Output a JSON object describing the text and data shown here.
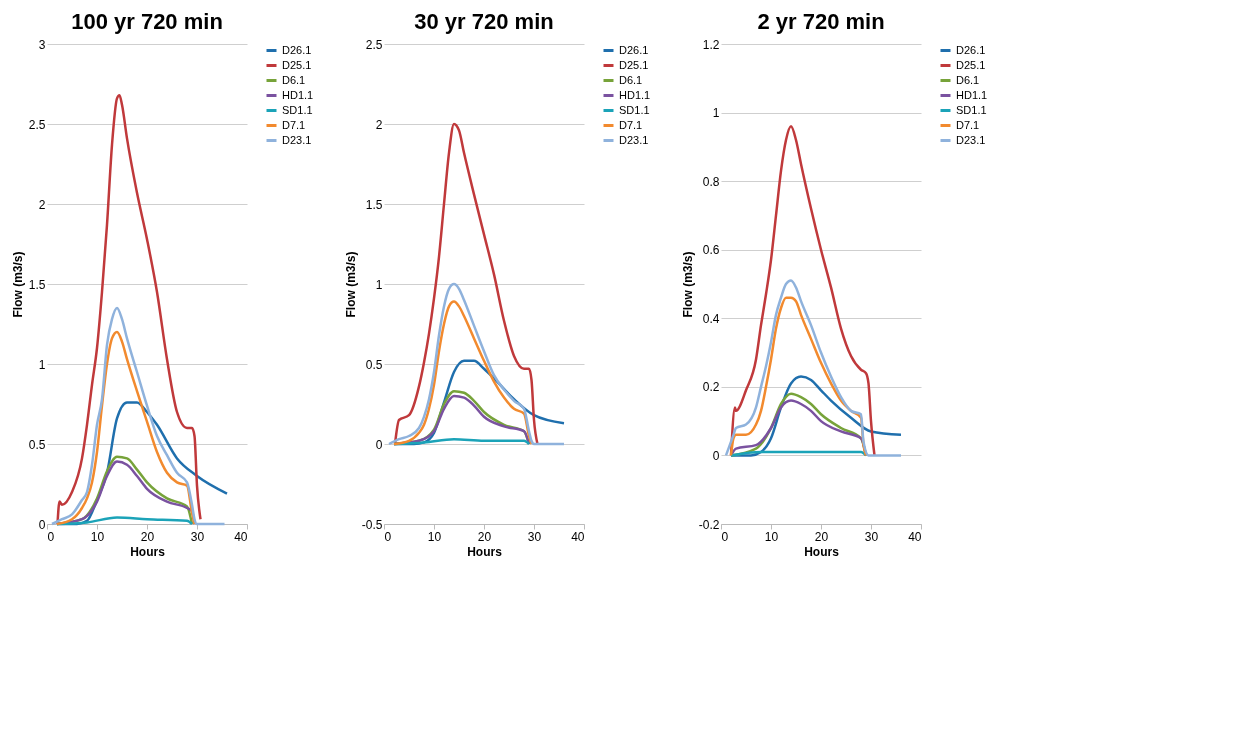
{
  "chart_data": [
    {
      "type": "line",
      "title": "100 yr 720 min",
      "xlabel": "Hours",
      "ylabel": "Flow (m3/s)",
      "xlim": [
        0,
        40
      ],
      "xticks": [
        0,
        10,
        20,
        30,
        40
      ],
      "ylim": [
        0,
        3
      ],
      "yticks": [
        0,
        0.5,
        1,
        1.5,
        2,
        2.5,
        3
      ],
      "grid": "y",
      "legend": "right",
      "series": [
        {
          "name": "D26.1",
          "color": "#1f6fad",
          "x": [
            2,
            6,
            8,
            10,
            12,
            14,
            16,
            18,
            20,
            22,
            26,
            30,
            36
          ],
          "values": [
            0,
            0,
            0.02,
            0.15,
            0.32,
            0.66,
            0.76,
            0.76,
            0.7,
            0.62,
            0.41,
            0.3,
            0.19
          ]
        },
        {
          "name": "D25.1",
          "color": "#c0393b",
          "x": [
            2.1,
            2.5,
            3,
            5,
            7,
            8,
            9,
            10,
            11,
            12,
            13,
            14,
            14.5,
            15,
            16,
            18,
            20,
            22,
            24,
            26,
            28,
            29,
            29.5,
            30,
            30.7
          ],
          "values": [
            0,
            0.14,
            0.12,
            0.2,
            0.41,
            0.62,
            0.87,
            1.1,
            1.45,
            1.87,
            2.37,
            2.66,
            2.68,
            2.62,
            2.41,
            2.07,
            1.78,
            1.45,
            1.03,
            0.7,
            0.6,
            0.6,
            0.55,
            0.24,
            0.03
          ]
        },
        {
          "name": "D6.1",
          "color": "#77a33a",
          "x": [
            2,
            7,
            10,
            12,
            14,
            16,
            18,
            20,
            24,
            28,
            29
          ],
          "values": [
            0,
            0.03,
            0.16,
            0.33,
            0.42,
            0.41,
            0.34,
            0.26,
            0.16,
            0.11,
            0
          ]
        },
        {
          "name": "HD1.1",
          "color": "#7a52a0",
          "x": [
            2,
            7,
            10,
            12,
            14,
            16,
            18,
            20,
            24,
            28,
            29,
            29.5
          ],
          "values": [
            0,
            0.03,
            0.14,
            0.3,
            0.39,
            0.37,
            0.3,
            0.22,
            0.14,
            0.1,
            0.08,
            0
          ]
        },
        {
          "name": "SD1.1",
          "color": "#1ba3b8",
          "x": [
            2,
            8,
            14,
            20,
            28,
            29
          ],
          "values": [
            0,
            0.01,
            0.04,
            0.03,
            0.02,
            0
          ]
        },
        {
          "name": "D7.1",
          "color": "#f28a2e",
          "x": [
            2,
            5,
            7,
            8,
            9,
            10,
            11,
            12,
            13,
            14,
            15,
            16,
            18,
            20,
            22,
            24,
            26,
            28,
            29,
            29.5
          ],
          "values": [
            0,
            0.03,
            0.1,
            0.16,
            0.26,
            0.45,
            0.74,
            1.0,
            1.16,
            1.2,
            1.14,
            1.03,
            0.83,
            0.64,
            0.45,
            0.32,
            0.26,
            0.24,
            0.07,
            0
          ]
        },
        {
          "name": "D23.1",
          "color": "#8fb2dc",
          "x": [
            1,
            3,
            5,
            7,
            8,
            9,
            10,
            11,
            12,
            13,
            14,
            15,
            16,
            18,
            20,
            22,
            24,
            26,
            28,
            29,
            29.5,
            30,
            35.5
          ],
          "values": [
            0,
            0.03,
            0.06,
            0.15,
            0.2,
            0.37,
            0.62,
            0.78,
            1.12,
            1.28,
            1.35,
            1.28,
            1.16,
            0.95,
            0.74,
            0.55,
            0.43,
            0.32,
            0.26,
            0.12,
            0.03,
            0,
            0
          ]
        }
      ]
    },
    {
      "type": "line",
      "title": "30 yr 720 min",
      "xlabel": "Hours",
      "ylabel": "Flow (m3/s)",
      "xlim": [
        0,
        40
      ],
      "xticks": [
        0,
        10,
        20,
        30,
        40
      ],
      "ylim": [
        -0.5,
        2.5
      ],
      "yticks": [
        -0.5,
        0,
        0.5,
        1,
        1.5,
        2,
        2.5
      ],
      "grid": "y",
      "legend": "right",
      "series": [
        {
          "name": "D26.1",
          "color": "#1f6fad",
          "x": [
            2,
            6,
            8,
            10,
            12,
            14,
            16,
            18,
            20,
            22,
            26,
            30,
            36
          ],
          "values": [
            0,
            0,
            0.01,
            0.07,
            0.26,
            0.45,
            0.52,
            0.52,
            0.47,
            0.41,
            0.28,
            0.18,
            0.13
          ]
        },
        {
          "name": "D25.1",
          "color": "#c0393b",
          "x": [
            2.2,
            3,
            5,
            7,
            8,
            9,
            10,
            11,
            12,
            13,
            14,
            15,
            16,
            18,
            20,
            22,
            24,
            26,
            28,
            29,
            29.5,
            30,
            30.7
          ],
          "values": [
            0,
            0.15,
            0.18,
            0.36,
            0.51,
            0.69,
            0.91,
            1.17,
            1.5,
            1.82,
            2.0,
            1.96,
            1.82,
            1.56,
            1.31,
            1.06,
            0.77,
            0.55,
            0.47,
            0.47,
            0.4,
            0.15,
            0
          ]
        },
        {
          "name": "D6.1",
          "color": "#77a33a",
          "x": [
            2,
            7,
            10,
            12,
            14,
            16,
            18,
            20,
            24,
            28,
            29
          ],
          "values": [
            0,
            0.02,
            0.09,
            0.25,
            0.33,
            0.32,
            0.27,
            0.2,
            0.12,
            0.08,
            0
          ]
        },
        {
          "name": "HD1.1",
          "color": "#7a52a0",
          "x": [
            2,
            7,
            10,
            12,
            14,
            16,
            18,
            20,
            24,
            28,
            29
          ],
          "values": [
            0,
            0.02,
            0.08,
            0.22,
            0.3,
            0.29,
            0.24,
            0.17,
            0.11,
            0.08,
            0
          ]
        },
        {
          "name": "SD1.1",
          "color": "#1ba3b8",
          "x": [
            2,
            8,
            14,
            20,
            28,
            29
          ],
          "values": [
            0,
            0.01,
            0.03,
            0.02,
            0.02,
            0
          ]
        },
        {
          "name": "D7.1",
          "color": "#f28a2e",
          "x": [
            2,
            5,
            7,
            8,
            9,
            10,
            11,
            12,
            13,
            14,
            15,
            16,
            18,
            20,
            22,
            24,
            26,
            28,
            29,
            29.5
          ],
          "values": [
            0,
            0.02,
            0.07,
            0.12,
            0.22,
            0.37,
            0.58,
            0.75,
            0.86,
            0.89,
            0.86,
            0.8,
            0.66,
            0.52,
            0.39,
            0.29,
            0.22,
            0.19,
            0.05,
            0
          ]
        },
        {
          "name": "D23.1",
          "color": "#8fb2dc",
          "x": [
            1,
            3,
            5,
            7,
            8,
            9,
            10,
            11,
            12,
            13,
            14,
            15,
            16,
            18,
            20,
            22,
            24,
            26,
            28,
            29,
            29.5,
            30,
            36
          ],
          "values": [
            0,
            0.03,
            0.05,
            0.1,
            0.17,
            0.28,
            0.45,
            0.68,
            0.86,
            0.97,
            1.0,
            0.97,
            0.9,
            0.74,
            0.58,
            0.43,
            0.34,
            0.27,
            0.22,
            0.08,
            0.02,
            0,
            0
          ]
        }
      ]
    },
    {
      "type": "line",
      "title": "2 yr 720 min",
      "xlabel": "Hours",
      "ylabel": "Flow (m3/s)",
      "xlim": [
        0,
        40
      ],
      "xticks": [
        0,
        10,
        20,
        30,
        40
      ],
      "ylim": [
        -0.2,
        1.2
      ],
      "yticks": [
        -0.2,
        0,
        0.2,
        0.4,
        0.6,
        0.8,
        1,
        1.2
      ],
      "grid": "y",
      "legend": "right",
      "series": [
        {
          "name": "D26.1",
          "color": "#1f6fad",
          "x": [
            2,
            6,
            8,
            10,
            12,
            14,
            16,
            18,
            20,
            22,
            26,
            30,
            36
          ],
          "values": [
            0,
            0,
            0.01,
            0.05,
            0.14,
            0.21,
            0.23,
            0.22,
            0.19,
            0.16,
            0.11,
            0.07,
            0.06
          ]
        },
        {
          "name": "D25.1",
          "color": "#c0393b",
          "x": [
            2,
            2.8,
            3,
            5,
            7,
            8,
            9,
            10,
            11,
            12,
            13,
            14,
            15,
            16,
            18,
            20,
            22,
            24,
            26,
            28,
            29,
            29.5,
            30,
            30.7
          ],
          "values": [
            0,
            0.14,
            0.13,
            0.19,
            0.28,
            0.38,
            0.47,
            0.57,
            0.7,
            0.83,
            0.92,
            0.96,
            0.92,
            0.85,
            0.72,
            0.6,
            0.49,
            0.37,
            0.29,
            0.25,
            0.24,
            0.21,
            0.1,
            0
          ]
        },
        {
          "name": "D6.1",
          "color": "#77a33a",
          "x": [
            2,
            7,
            10,
            12,
            14,
            16,
            18,
            20,
            24,
            28,
            29
          ],
          "values": [
            0,
            0.02,
            0.08,
            0.15,
            0.18,
            0.17,
            0.15,
            0.12,
            0.08,
            0.05,
            0
          ]
        },
        {
          "name": "HD1.1",
          "color": "#7a52a0",
          "x": [
            2,
            3,
            7,
            10,
            12,
            14,
            16,
            18,
            20,
            24,
            28,
            29
          ],
          "values": [
            0,
            0.02,
            0.03,
            0.08,
            0.14,
            0.16,
            0.15,
            0.13,
            0.1,
            0.07,
            0.05,
            0
          ]
        },
        {
          "name": "SD1.1",
          "color": "#1ba3b8",
          "x": [
            2,
            8,
            14,
            20,
            28,
            29
          ],
          "values": [
            0,
            0.01,
            0.01,
            0.01,
            0.01,
            0
          ]
        },
        {
          "name": "D7.1",
          "color": "#f28a2e",
          "x": [
            2,
            2.5,
            3,
            5,
            7,
            8,
            9,
            10,
            11,
            12,
            13,
            14,
            15,
            16,
            18,
            20,
            22,
            24,
            26,
            28,
            28.5,
            29
          ],
          "values": [
            0,
            0.05,
            0.06,
            0.06,
            0.09,
            0.13,
            0.2,
            0.28,
            0.37,
            0.43,
            0.46,
            0.46,
            0.45,
            0.41,
            0.34,
            0.27,
            0.21,
            0.16,
            0.13,
            0.11,
            0.03,
            0
          ]
        },
        {
          "name": "D23.1",
          "color": "#8fb2dc",
          "x": [
            1,
            2.5,
            3,
            5,
            7,
            8,
            9,
            10,
            11,
            12,
            13,
            14,
            15,
            16,
            18,
            20,
            22,
            24,
            26,
            28,
            28.5,
            29.5,
            36
          ],
          "values": [
            0,
            0.06,
            0.08,
            0.09,
            0.14,
            0.2,
            0.26,
            0.33,
            0.41,
            0.46,
            0.5,
            0.51,
            0.49,
            0.45,
            0.38,
            0.3,
            0.23,
            0.17,
            0.13,
            0.12,
            0.04,
            0,
            0
          ]
        }
      ]
    }
  ]
}
